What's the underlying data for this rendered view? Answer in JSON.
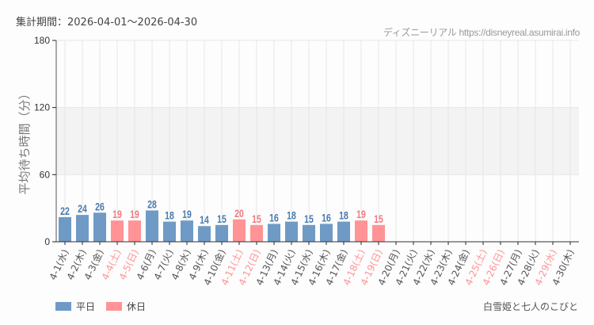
{
  "header": {
    "period_label": "集計期間：2026-04-01〜2026-04-30",
    "credit": "ディズニーリアル https://disneyreal.asumirai.info"
  },
  "legend": {
    "weekday_label": "平日",
    "holiday_label": "休日"
  },
  "attraction_name": "白雪姫と七人のこびと",
  "colors": {
    "weekday": "#6f9ac6",
    "holiday": "#ff9396",
    "weekday_text": "#4a7bb0",
    "holiday_text": "#f07a80",
    "band": "#f3f3f3",
    "grid": "#e6e6e6"
  },
  "chart_data": {
    "type": "bar",
    "title": "集計期間：2026-04-01〜2026-04-30",
    "xlabel": "",
    "ylabel": "平均待ち時間（分）",
    "ylim": [
      0,
      180
    ],
    "yticks": [
      0,
      60,
      120,
      180
    ],
    "grid": true,
    "legend_position": "bottom-left",
    "categories": [
      "4-1(水)",
      "4-2(木)",
      "4-3(金)",
      "4-4(土)",
      "4-5(日)",
      "4-6(月)",
      "4-7(火)",
      "4-8(水)",
      "4-9(木)",
      "4-10(金)",
      "4-11(土)",
      "4-12(日)",
      "4-13(月)",
      "4-14(火)",
      "4-15(水)",
      "4-16(木)",
      "4-17(金)",
      "4-18(土)",
      "4-19(日)",
      "4-20(月)",
      "4-21(火)",
      "4-22(水)",
      "4-23(木)",
      "4-24(金)",
      "4-25(土)",
      "4-26(日)",
      "4-27(月)",
      "4-28(火)",
      "4-29(水)",
      "4-30(木)"
    ],
    "day_type": [
      "weekday",
      "weekday",
      "weekday",
      "holiday",
      "holiday",
      "weekday",
      "weekday",
      "weekday",
      "weekday",
      "weekday",
      "holiday",
      "holiday",
      "weekday",
      "weekday",
      "weekday",
      "weekday",
      "weekday",
      "holiday",
      "holiday",
      "weekday",
      "weekday",
      "weekday",
      "weekday",
      "weekday",
      "holiday",
      "holiday",
      "weekday",
      "weekday",
      "holiday",
      "weekday"
    ],
    "values": [
      22,
      24,
      26,
      19,
      19,
      28,
      18,
      19,
      14,
      15,
      20,
      15,
      16,
      18,
      15,
      16,
      18,
      19,
      15,
      null,
      null,
      null,
      null,
      null,
      null,
      null,
      null,
      null,
      null,
      null
    ],
    "series": [
      {
        "name": "平日",
        "color": "#6f9ac6"
      },
      {
        "name": "休日",
        "color": "#ff9396"
      }
    ]
  }
}
